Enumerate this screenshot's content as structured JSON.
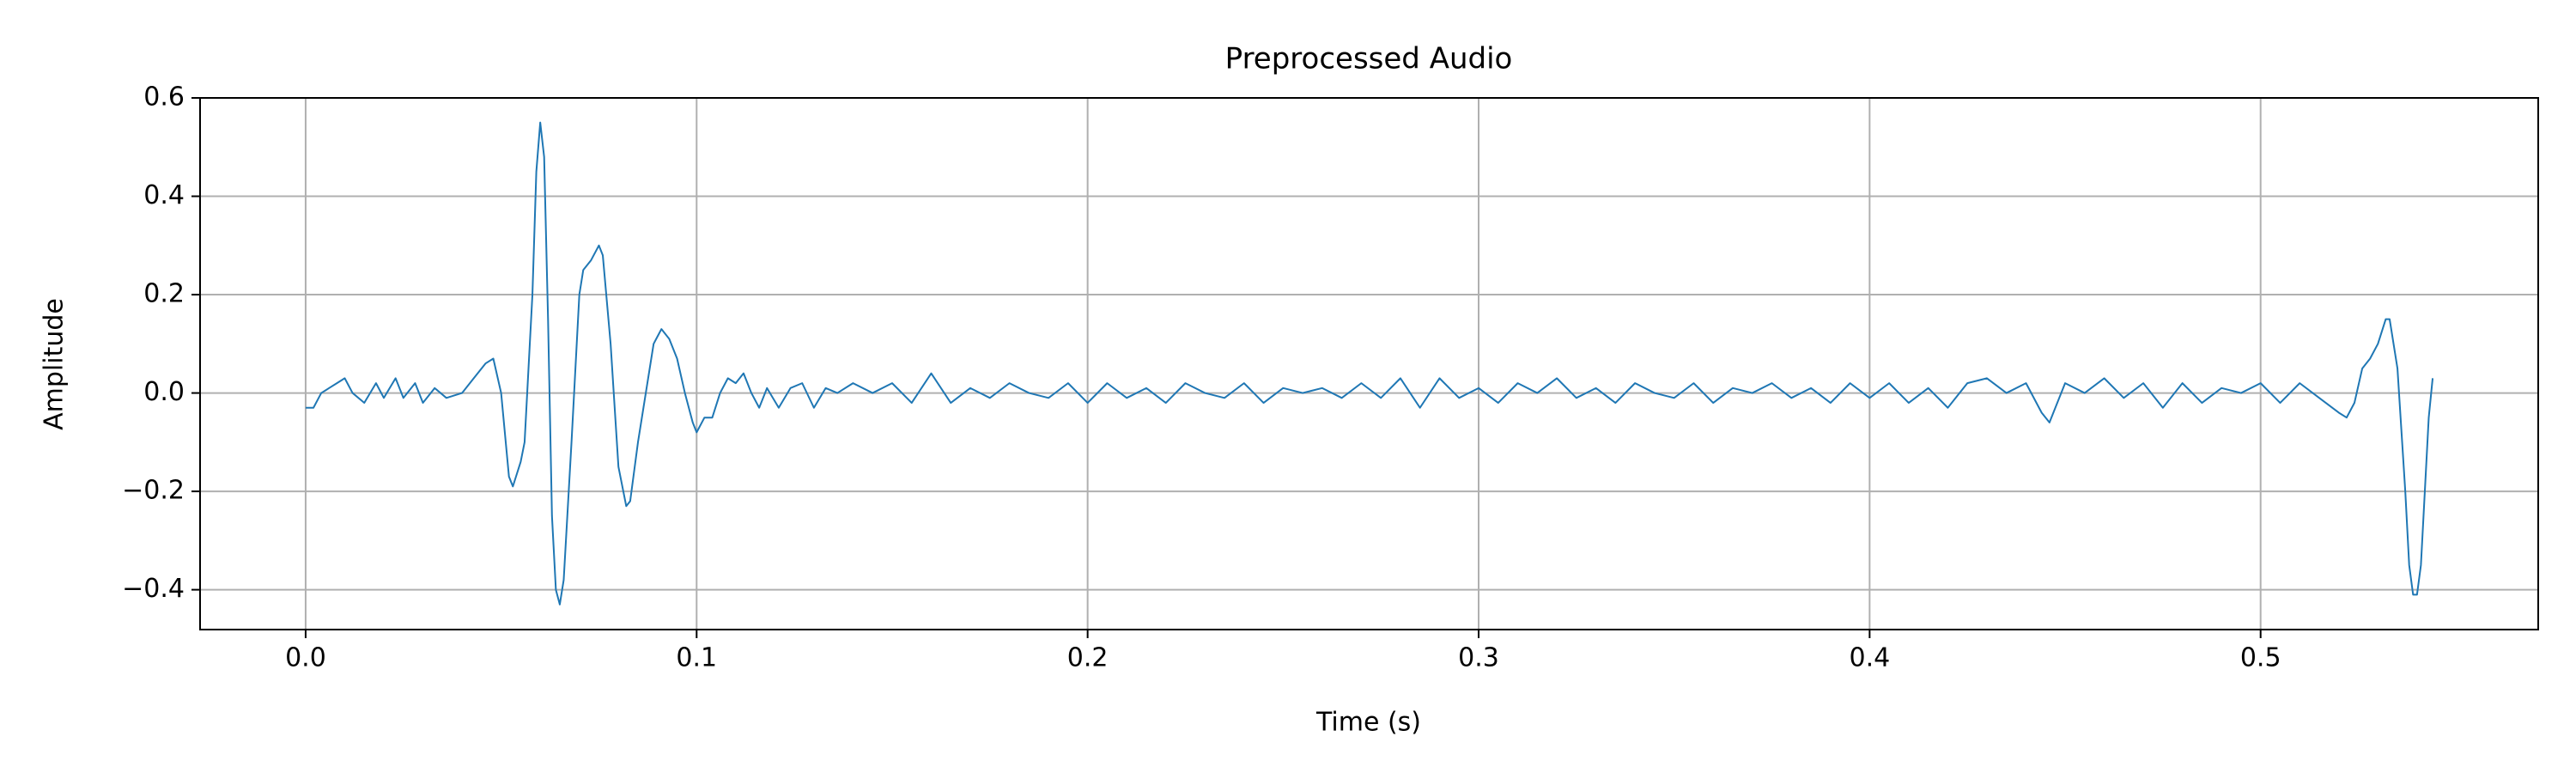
{
  "chart_data": {
    "type": "line",
    "title": "Preprocessed Audio",
    "xlabel": "Time (s)",
    "ylabel": "Amplitude",
    "color": "#1f77b4",
    "grid": true,
    "xlim": [
      -0.027,
      0.571
    ],
    "ylim": [
      -0.481,
      0.6
    ],
    "xticks": [
      {
        "value": 0,
        "label": "0.0"
      },
      0.1,
      0.2,
      0.3,
      0.4,
      0.5
    ],
    "yticks": [
      {
        "value": -0.4,
        "label": "−0.4"
      },
      {
        "value": -0.2,
        "label": "−0.2"
      },
      {
        "value": 0,
        "label": "0.0"
      },
      0.2,
      0.4,
      0.6
    ],
    "x": [
      0.0,
      0.002,
      0.004,
      0.006,
      0.008,
      0.01,
      0.012,
      0.015,
      0.018,
      0.02,
      0.023,
      0.025,
      0.028,
      0.03,
      0.033,
      0.036,
      0.04,
      0.043,
      0.046,
      0.048,
      0.05,
      0.052,
      0.053,
      0.055,
      0.056,
      0.058,
      0.059,
      0.06,
      0.061,
      0.062,
      0.063,
      0.064,
      0.065,
      0.066,
      0.068,
      0.07,
      0.071,
      0.073,
      0.075,
      0.076,
      0.078,
      0.08,
      0.082,
      0.083,
      0.085,
      0.087,
      0.089,
      0.091,
      0.093,
      0.095,
      0.097,
      0.099,
      0.1,
      0.102,
      0.104,
      0.106,
      0.108,
      0.11,
      0.112,
      0.114,
      0.116,
      0.118,
      0.121,
      0.124,
      0.127,
      0.13,
      0.133,
      0.136,
      0.14,
      0.145,
      0.15,
      0.155,
      0.16,
      0.165,
      0.17,
      0.175,
      0.18,
      0.185,
      0.19,
      0.195,
      0.2,
      0.205,
      0.21,
      0.215,
      0.22,
      0.225,
      0.23,
      0.235,
      0.24,
      0.245,
      0.25,
      0.255,
      0.26,
      0.265,
      0.27,
      0.275,
      0.28,
      0.285,
      0.29,
      0.295,
      0.3,
      0.305,
      0.31,
      0.315,
      0.32,
      0.325,
      0.33,
      0.335,
      0.34,
      0.345,
      0.35,
      0.355,
      0.36,
      0.365,
      0.37,
      0.375,
      0.38,
      0.385,
      0.39,
      0.395,
      0.4,
      0.405,
      0.41,
      0.415,
      0.42,
      0.425,
      0.43,
      0.435,
      0.44,
      0.444,
      0.446,
      0.45,
      0.455,
      0.46,
      0.465,
      0.47,
      0.475,
      0.48,
      0.485,
      0.49,
      0.495,
      0.5,
      0.505,
      0.51,
      0.515,
      0.52,
      0.522,
      0.524,
      0.526,
      0.528,
      0.53,
      0.532,
      0.533,
      0.535,
      0.537,
      0.538,
      0.539,
      0.54,
      0.541,
      0.542,
      0.543,
      0.544
    ],
    "values": [
      -0.03,
      -0.03,
      0.0,
      0.01,
      0.02,
      0.03,
      0.0,
      -0.02,
      0.02,
      -0.01,
      0.03,
      -0.01,
      0.02,
      -0.02,
      0.01,
      -0.01,
      0.0,
      0.03,
      0.06,
      0.07,
      0.0,
      -0.17,
      -0.19,
      -0.14,
      -0.1,
      0.2,
      0.45,
      0.55,
      0.48,
      0.15,
      -0.25,
      -0.4,
      -0.43,
      -0.38,
      -0.1,
      0.2,
      0.25,
      0.27,
      0.3,
      0.28,
      0.1,
      -0.15,
      -0.23,
      -0.22,
      -0.1,
      0.0,
      0.1,
      0.13,
      0.11,
      0.07,
      0.0,
      -0.06,
      -0.08,
      -0.05,
      -0.05,
      0.0,
      0.03,
      0.02,
      0.04,
      0.0,
      -0.03,
      0.01,
      -0.03,
      0.01,
      0.02,
      -0.03,
      0.01,
      0.0,
      0.02,
      0.0,
      0.02,
      -0.02,
      0.04,
      -0.02,
      0.01,
      -0.01,
      0.02,
      0.0,
      -0.01,
      0.02,
      -0.02,
      0.02,
      -0.01,
      0.01,
      -0.02,
      0.02,
      0.0,
      -0.01,
      0.02,
      -0.02,
      0.01,
      0.0,
      0.01,
      -0.01,
      0.02,
      -0.01,
      0.03,
      -0.03,
      0.03,
      -0.01,
      0.01,
      -0.02,
      0.02,
      0.0,
      0.03,
      -0.01,
      0.01,
      -0.02,
      0.02,
      0.0,
      -0.01,
      0.02,
      -0.02,
      0.01,
      0.0,
      0.02,
      -0.01,
      0.01,
      -0.02,
      0.02,
      -0.01,
      0.02,
      -0.02,
      0.01,
      -0.03,
      0.02,
      0.03,
      0.0,
      0.02,
      -0.04,
      -0.06,
      0.02,
      0.0,
      0.03,
      -0.01,
      0.02,
      -0.03,
      0.02,
      -0.02,
      0.01,
      0.0,
      0.02,
      -0.02,
      0.02,
      -0.01,
      -0.04,
      -0.05,
      -0.02,
      0.05,
      0.07,
      0.1,
      0.15,
      0.15,
      0.05,
      -0.2,
      -0.35,
      -0.41,
      -0.41,
      -0.35,
      -0.2,
      -0.05,
      0.03
    ]
  }
}
